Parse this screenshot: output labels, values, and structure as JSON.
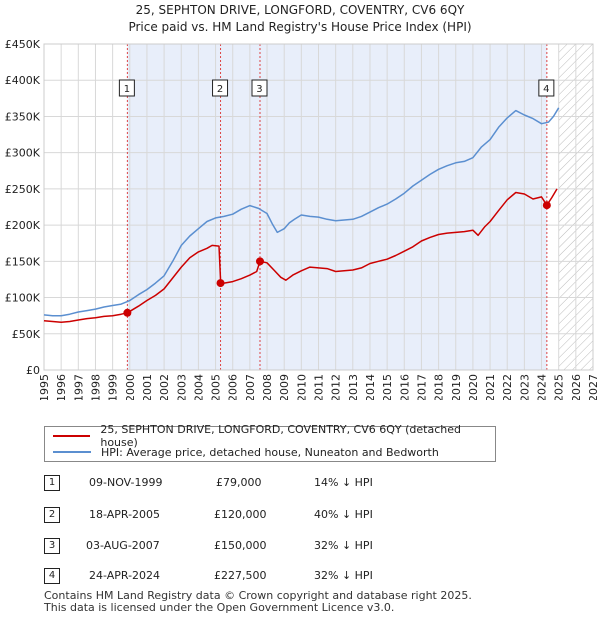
{
  "chart_data": {
    "type": "line",
    "title": "25, SEPHTON DRIVE, LONGFORD, COVENTRY, CV6 6QY",
    "subtitle": "Price paid vs. HM Land Registry's House Price Index (HPI)",
    "xlabel": "",
    "ylabel": "",
    "xlim": [
      1995,
      2027
    ],
    "ylim": [
      0,
      450000
    ],
    "x_ticks": [
      "1995",
      "1996",
      "1997",
      "1998",
      "1999",
      "2000",
      "2001",
      "2002",
      "2003",
      "2004",
      "2005",
      "2006",
      "2007",
      "2008",
      "2009",
      "2010",
      "2011",
      "2012",
      "2013",
      "2014",
      "2015",
      "2016",
      "2017",
      "2018",
      "2019",
      "2020",
      "2021",
      "2022",
      "2023",
      "2024",
      "2025",
      "2026",
      "2027"
    ],
    "y_ticks": [
      {
        "v": 0,
        "label": "£0"
      },
      {
        "v": 50000,
        "label": "£50K"
      },
      {
        "v": 100000,
        "label": "£100K"
      },
      {
        "v": 150000,
        "label": "£150K"
      },
      {
        "v": 200000,
        "label": "£200K"
      },
      {
        "v": 250000,
        "label": "£250K"
      },
      {
        "v": 300000,
        "label": "£300K"
      },
      {
        "v": 350000,
        "label": "£350K"
      },
      {
        "v": 400000,
        "label": "£400K"
      },
      {
        "v": 450000,
        "label": "£450K"
      }
    ],
    "shaded_range": [
      1999.86,
      2024.31
    ],
    "forecast_from": 2025.0,
    "series": [
      {
        "name": "25, SEPHTON DRIVE, LONGFORD, COVENTRY, CV6 6QY (detached house)",
        "color": "#cc0000",
        "x": [
          1995,
          1995.5,
          1996,
          1996.5,
          1997,
          1997.5,
          1998,
          1998.5,
          1999,
          1999.5,
          1999.86,
          2000.5,
          2001,
          2001.5,
          2002,
          2002.5,
          2003,
          2003.5,
          2004,
          2004.5,
          2004.8,
          2005.2,
          2005.3,
          2005.5,
          2006,
          2006.5,
          2007,
          2007.4,
          2007.59,
          2008,
          2008.4,
          2008.8,
          2009.1,
          2009.5,
          2010,
          2010.5,
          2011,
          2011.5,
          2012,
          2012.5,
          2013,
          2013.5,
          2014,
          2014.5,
          2015,
          2015.5,
          2016,
          2016.5,
          2017,
          2017.5,
          2018,
          2018.5,
          2019,
          2019.5,
          2020,
          2020.3,
          2020.7,
          2021,
          2021.5,
          2022,
          2022.5,
          2023,
          2023.5,
          2024,
          2024.31,
          2024.6,
          2024.9
        ],
        "y": [
          68000,
          67000,
          66000,
          67000,
          69000,
          71000,
          72000,
          74000,
          75000,
          77000,
          79000,
          88000,
          96000,
          103000,
          112000,
          127000,
          142000,
          155000,
          163000,
          168000,
          172000,
          171000,
          120000,
          120000,
          122000,
          126000,
          131000,
          136000,
          150000,
          148000,
          138000,
          128000,
          124000,
          131000,
          137000,
          142000,
          141000,
          140000,
          136000,
          137000,
          138000,
          141000,
          147000,
          150000,
          153000,
          158000,
          164000,
          170000,
          178000,
          183000,
          187000,
          189000,
          190000,
          191000,
          193000,
          186000,
          198000,
          205000,
          220000,
          235000,
          245000,
          243000,
          236000,
          239000,
          227500,
          238000,
          250000
        ]
      },
      {
        "name": "HPI: Average price, detached house, Nuneaton and Bedworth",
        "color": "#5b8fd0",
        "x": [
          1995,
          1995.5,
          1996,
          1996.5,
          1997,
          1997.5,
          1998,
          1998.5,
          1999,
          1999.5,
          2000,
          2000.5,
          2001,
          2001.5,
          2002,
          2002.5,
          2003,
          2003.5,
          2004,
          2004.5,
          2005,
          2005.5,
          2006,
          2006.5,
          2007,
          2007.5,
          2008,
          2008.3,
          2008.6,
          2009,
          2009.3,
          2009.6,
          2010,
          2010.5,
          2011,
          2011.5,
          2012,
          2012.5,
          2013,
          2013.5,
          2014,
          2014.5,
          2015,
          2015.5,
          2016,
          2016.5,
          2017,
          2017.5,
          2018,
          2018.5,
          2019,
          2019.5,
          2020,
          2020.5,
          2021,
          2021.5,
          2022,
          2022.5,
          2023,
          2023.5,
          2024,
          2024.4,
          2024.7,
          2025
        ],
        "y": [
          76000,
          75000,
          75000,
          77000,
          80000,
          82000,
          84000,
          87000,
          89000,
          91000,
          96000,
          104000,
          111000,
          120000,
          130000,
          150000,
          172000,
          185000,
          195000,
          205000,
          210000,
          212000,
          215000,
          222000,
          227000,
          223000,
          216000,
          202000,
          190000,
          195000,
          203000,
          208000,
          214000,
          212000,
          211000,
          208000,
          206000,
          207000,
          208000,
          212000,
          218000,
          224000,
          229000,
          236000,
          244000,
          254000,
          262000,
          270000,
          277000,
          282000,
          286000,
          288000,
          293000,
          308000,
          318000,
          335000,
          348000,
          358000,
          352000,
          347000,
          340000,
          342000,
          350000,
          362000
        ]
      }
    ],
    "sales": [
      {
        "num": "1",
        "date": "09-NOV-1999",
        "x": 1999.86,
        "price": 79000,
        "price_label": "£79,000",
        "pct": "14% ↓ HPI"
      },
      {
        "num": "2",
        "date": "18-APR-2005",
        "x": 2005.29,
        "price": 120000,
        "price_label": "£120,000",
        "pct": "40% ↓ HPI"
      },
      {
        "num": "3",
        "date": "03-AUG-2007",
        "x": 2007.59,
        "price": 150000,
        "price_label": "£150,000",
        "pct": "32% ↓ HPI"
      },
      {
        "num": "4",
        "date": "24-APR-2024",
        "x": 2024.31,
        "price": 227500,
        "price_label": "£227,500",
        "pct": "32% ↓ HPI"
      }
    ]
  },
  "legend": {
    "property": "25, SEPHTON DRIVE, LONGFORD, COVENTRY, CV6 6QY (detached house)",
    "hpi": "HPI: Average price, detached house, Nuneaton and Bedworth"
  },
  "footer": {
    "line1": "Contains HM Land Registry data © Crown copyright and database right 2025.",
    "line2": "This data is licensed under the Open Government Licence v3.0."
  },
  "colors": {
    "property": "#cc0000",
    "hpi": "#5b8fd0",
    "shade": "#e8eefa",
    "grid": "#d8d8d8"
  }
}
